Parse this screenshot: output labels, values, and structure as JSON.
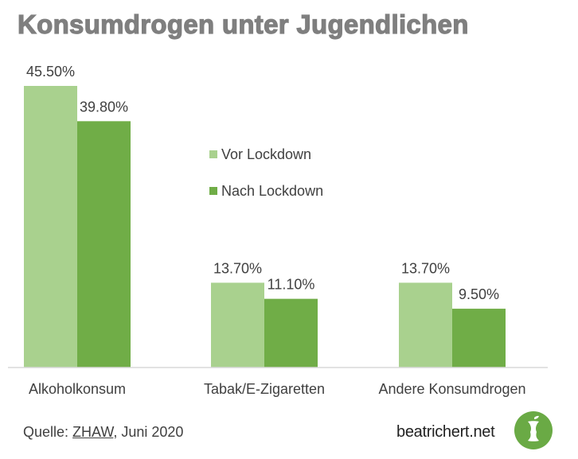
{
  "chart_data": {
    "type": "bar",
    "title": "Konsumdrogen unter Jugendlichen",
    "categories": [
      "Alkoholkonsum",
      "Tabak/E-Zigaretten",
      "Andere Konsumdrogen"
    ],
    "series": [
      {
        "name": "Vor Lockdown",
        "values": [
          45.5,
          13.7,
          13.7
        ],
        "labels": [
          "45.50%",
          "13.70%",
          "13.70%"
        ],
        "color": "#a9d18e"
      },
      {
        "name": "Nach Lockdown",
        "values": [
          39.8,
          11.1,
          9.5
        ],
        "labels": [
          "39.80%",
          "11.10%",
          "9.50%"
        ],
        "color": "#70ad47"
      }
    ],
    "ylim": [
      0,
      45.5
    ],
    "grid": false,
    "legend": "center"
  },
  "footer": {
    "source_prefix": "Quelle: ",
    "source_link": "ZHAW",
    "source_suffix": ", Juni 2020",
    "brand": "beatrichert.net",
    "logo_icon": "apple-core-icon"
  }
}
